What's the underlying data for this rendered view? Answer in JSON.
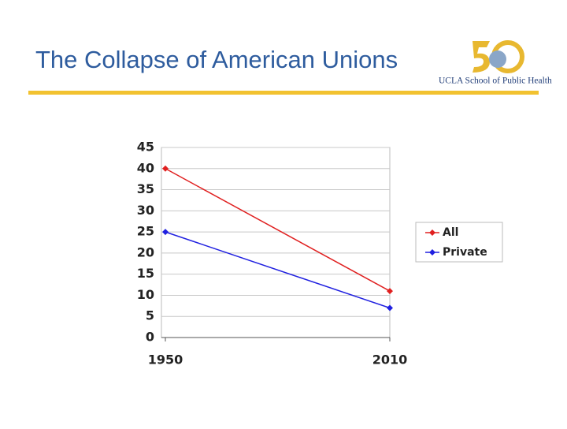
{
  "logo": {
    "text": "UCLA School of Public Health"
  },
  "chart_data": {
    "type": "line",
    "title": "The Collapse of American Unions",
    "x": [
      1950,
      2010
    ],
    "xlim": [
      1950,
      2010
    ],
    "xticks": [
      1950,
      2010
    ],
    "ylim": [
      0,
      45
    ],
    "yticks": [
      0,
      5,
      10,
      15,
      20,
      25,
      30,
      35,
      40,
      45
    ],
    "grid": true,
    "legend": "right",
    "series": [
      {
        "name": "All",
        "color": "#e02020",
        "values": [
          40,
          11
        ]
      },
      {
        "name": "Private",
        "color": "#2020e0",
        "values": [
          25,
          7
        ]
      }
    ]
  }
}
